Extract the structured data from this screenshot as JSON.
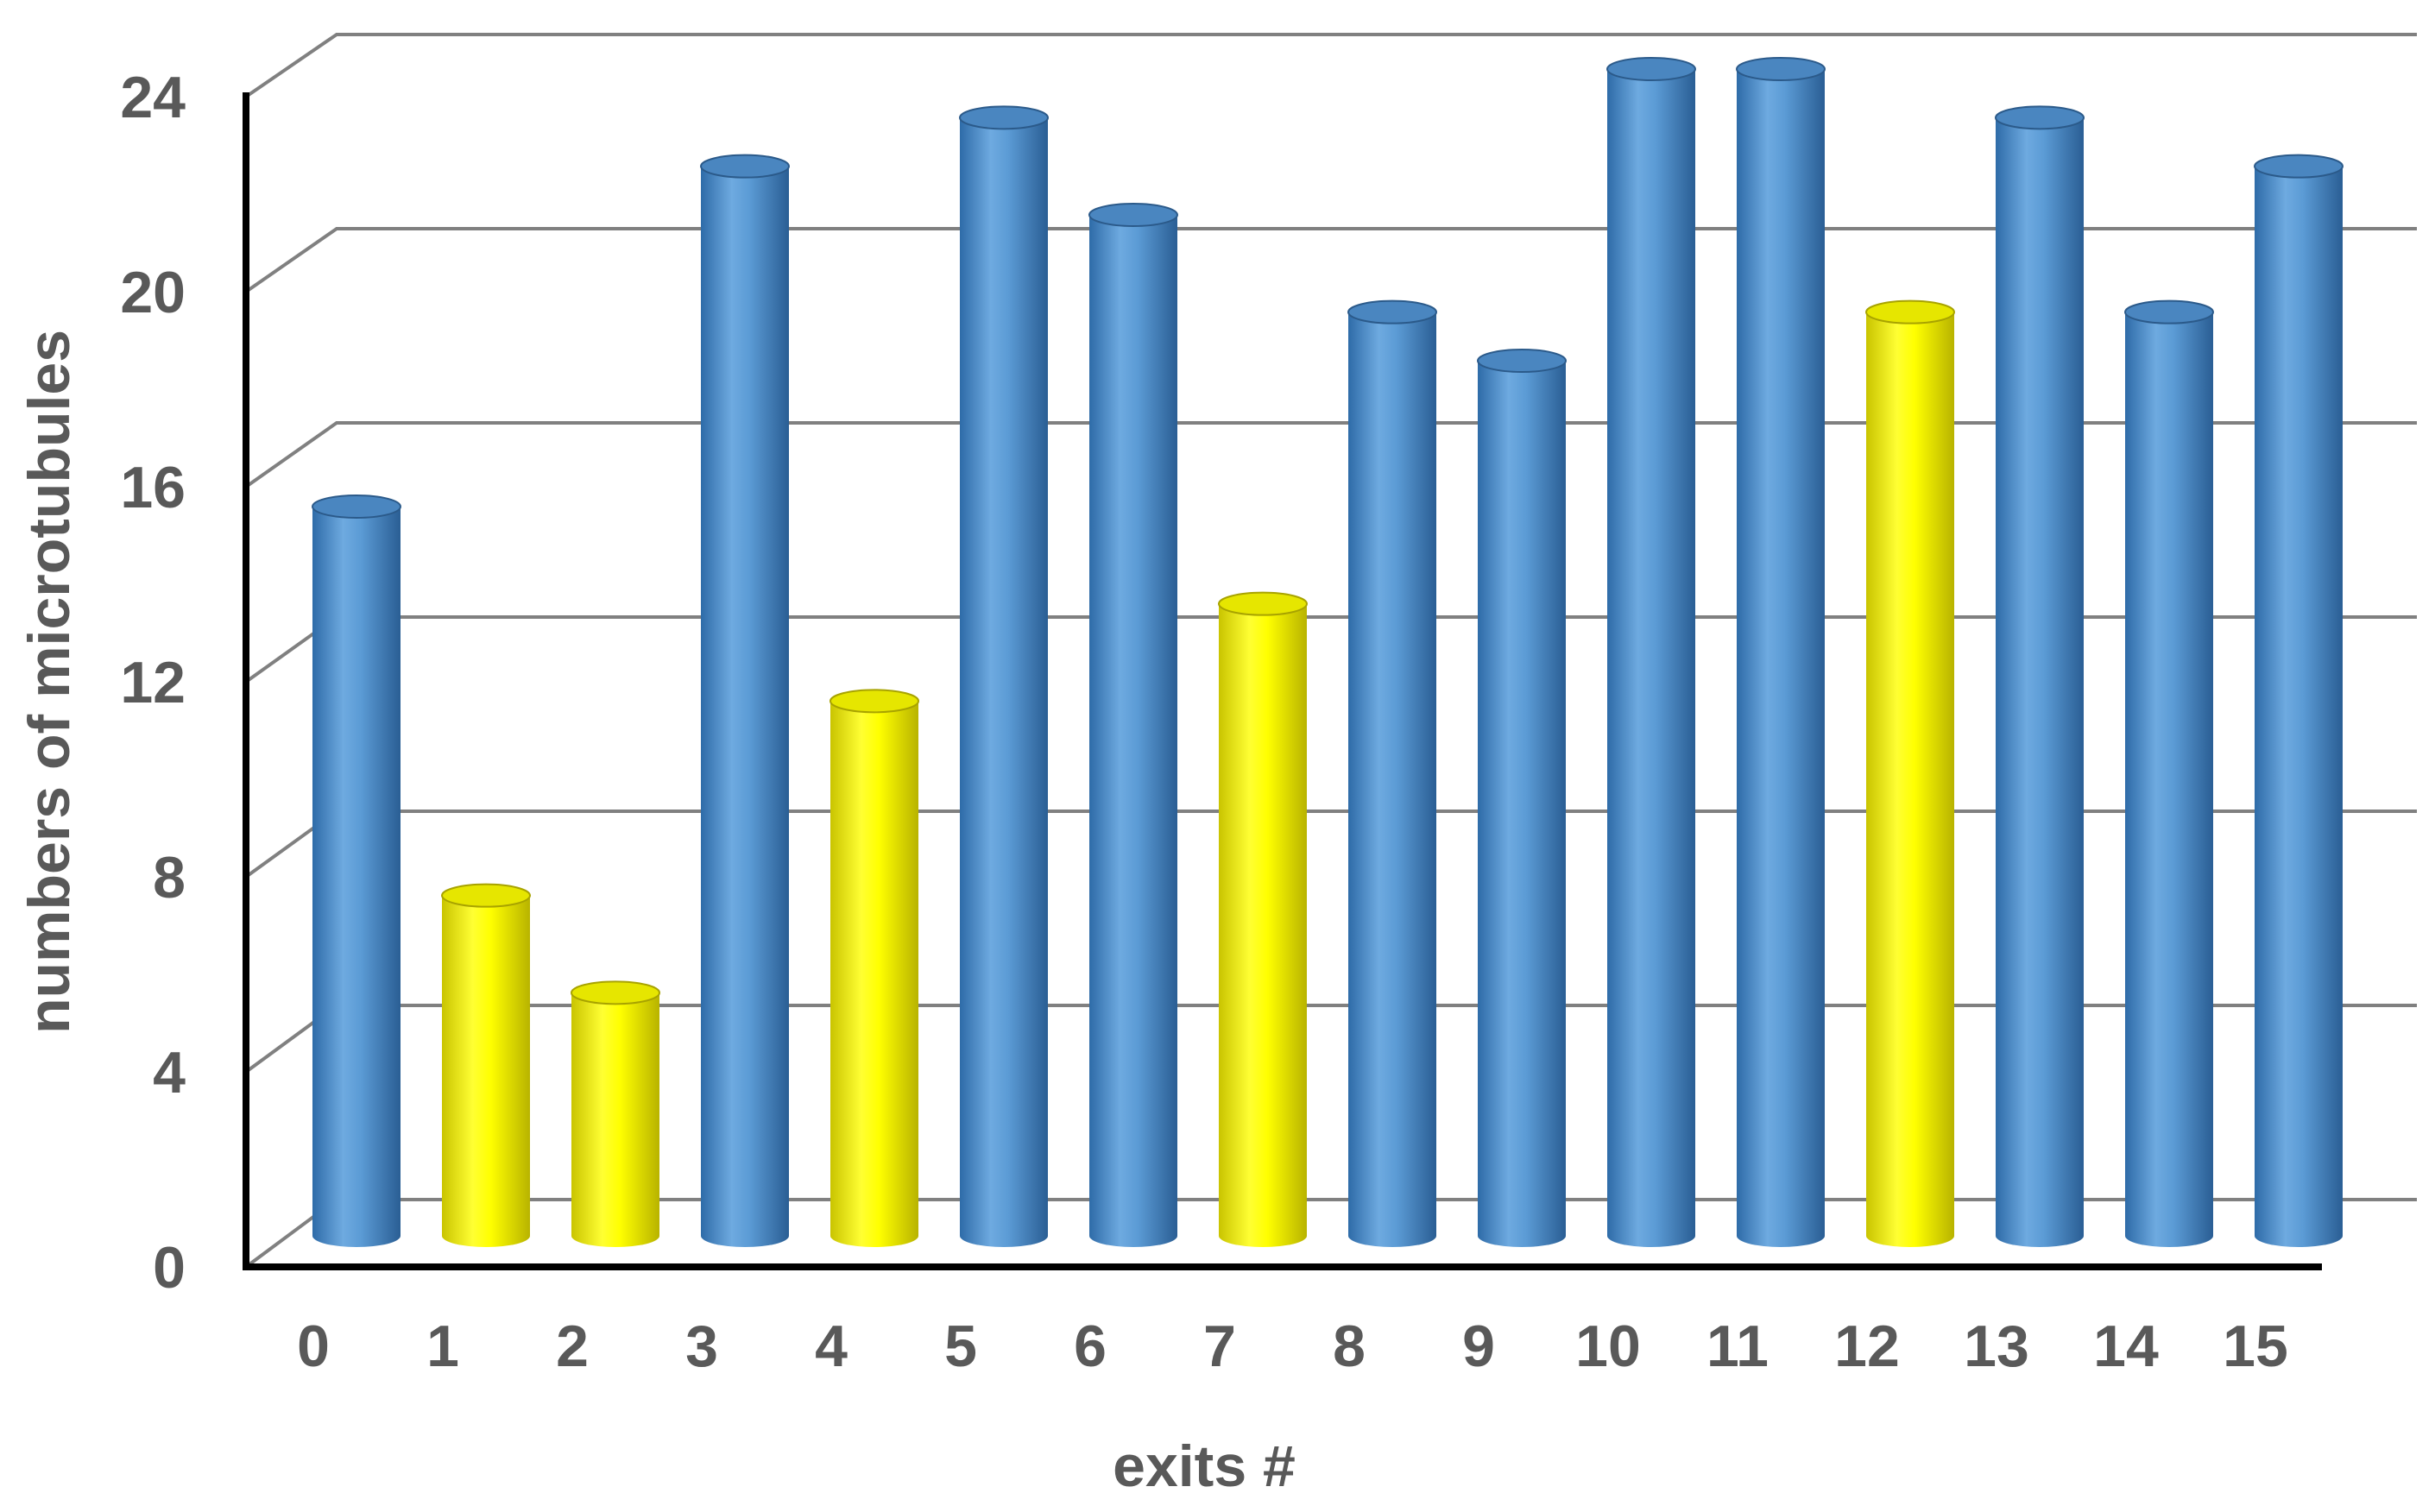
{
  "chart_data": {
    "type": "bar",
    "style": "3d-cylinder",
    "title": "",
    "xlabel": "exits #",
    "ylabel": "numbers of microtubules",
    "categories": [
      "0",
      "1",
      "2",
      "3",
      "4",
      "5",
      "6",
      "7",
      "8",
      "9",
      "10",
      "11",
      "12",
      "13",
      "14",
      "15"
    ],
    "values": [
      15,
      7,
      5,
      22,
      11,
      23,
      21,
      13,
      19,
      18,
      24,
      24,
      19,
      23,
      19,
      22
    ],
    "highlight": [
      false,
      true,
      true,
      false,
      true,
      false,
      false,
      true,
      false,
      false,
      false,
      false,
      true,
      false,
      false,
      false
    ],
    "yticks": [
      "0",
      "4",
      "8",
      "12",
      "16",
      "20",
      "24"
    ],
    "ylim": [
      0,
      24
    ],
    "grid": true,
    "legend": "none",
    "colors": {
      "default_bar": "#5B9BD5",
      "highlight_bar": "#FFFF00",
      "gridline": "#808080",
      "axis": "#000000",
      "text": "#595959"
    }
  }
}
